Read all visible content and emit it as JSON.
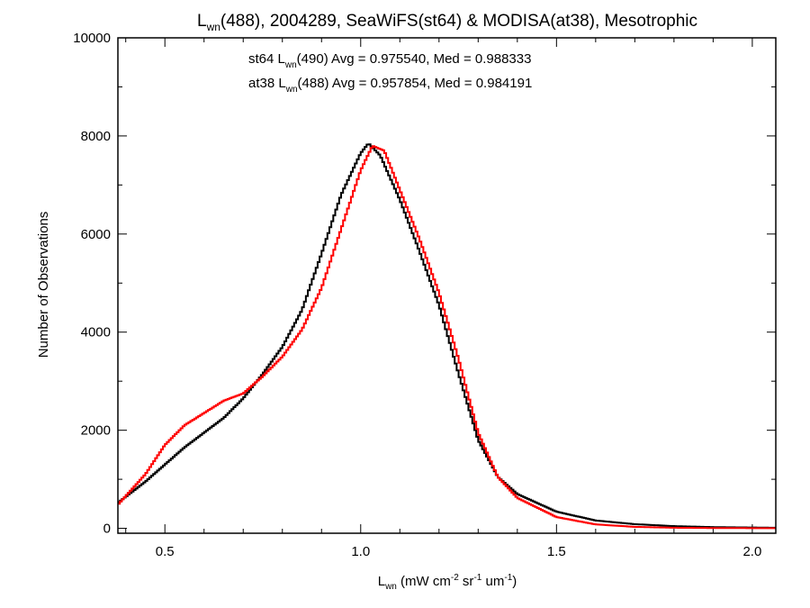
{
  "chart_data": {
    "type": "line",
    "title": {
      "main": "L",
      "sub": "wn",
      "rest": "(488), 2004289, SeaWiFS(st64) & MODISA(at38), Mesotrophic"
    },
    "xlabel": {
      "main": "L",
      "sub": "wn",
      "a": " (mW cm",
      "sup1": "-2",
      "b": " sr",
      "sup2": "-1",
      "c": " um",
      "sup3": "-1",
      "d": ")"
    },
    "ylabel": "Number of Observations",
    "xlim": [
      0.38,
      2.06
    ],
    "ylim": [
      -100,
      10000
    ],
    "xticks": [
      0.5,
      1.0,
      1.5,
      2.0
    ],
    "xtick_labels": [
      "0.5",
      "1.0",
      "1.5",
      "2.0"
    ],
    "yticks": [
      0,
      2000,
      4000,
      6000,
      8000,
      10000
    ],
    "ytick_labels": [
      "0",
      "2000",
      "4000",
      "6000",
      "8000",
      "10000"
    ],
    "annotations": [
      {
        "color": "#000000",
        "pre": "st64 L",
        "sub": "wn",
        "post": "(490) Avg = 0.975540, Med = 0.988333"
      },
      {
        "color": "#ff0000",
        "pre": "at38 L",
        "sub": "wn",
        "post": "(488) Avg = 0.957854, Med = 0.984191"
      }
    ],
    "series": [
      {
        "color": "#000000",
        "points": [
          [
            0.38,
            520
          ],
          [
            0.45,
            950
          ],
          [
            0.5,
            1300
          ],
          [
            0.55,
            1650
          ],
          [
            0.6,
            1950
          ],
          [
            0.65,
            2250
          ],
          [
            0.7,
            2650
          ],
          [
            0.75,
            3150
          ],
          [
            0.8,
            3700
          ],
          [
            0.85,
            4450
          ],
          [
            0.9,
            5600
          ],
          [
            0.95,
            6800
          ],
          [
            1.0,
            7650
          ],
          [
            1.02,
            7850
          ],
          [
            1.05,
            7600
          ],
          [
            1.1,
            6700
          ],
          [
            1.15,
            5650
          ],
          [
            1.2,
            4550
          ],
          [
            1.25,
            3150
          ],
          [
            1.3,
            1800
          ],
          [
            1.35,
            1050
          ],
          [
            1.4,
            700
          ],
          [
            1.5,
            340
          ],
          [
            1.6,
            160
          ],
          [
            1.7,
            85
          ],
          [
            1.8,
            45
          ],
          [
            1.9,
            25
          ],
          [
            2.06,
            12
          ]
        ]
      },
      {
        "color": "#ff0000",
        "points": [
          [
            0.38,
            480
          ],
          [
            0.45,
            1100
          ],
          [
            0.5,
            1700
          ],
          [
            0.55,
            2100
          ],
          [
            0.6,
            2350
          ],
          [
            0.65,
            2600
          ],
          [
            0.7,
            2750
          ],
          [
            0.75,
            3100
          ],
          [
            0.8,
            3500
          ],
          [
            0.85,
            4050
          ],
          [
            0.9,
            4900
          ],
          [
            0.95,
            6100
          ],
          [
            1.0,
            7300
          ],
          [
            1.03,
            7800
          ],
          [
            1.06,
            7700
          ],
          [
            1.1,
            6900
          ],
          [
            1.15,
            5900
          ],
          [
            1.2,
            4800
          ],
          [
            1.25,
            3450
          ],
          [
            1.3,
            1950
          ],
          [
            1.35,
            1050
          ],
          [
            1.4,
            620
          ],
          [
            1.5,
            230
          ],
          [
            1.6,
            80
          ],
          [
            1.7,
            30
          ],
          [
            1.8,
            12
          ],
          [
            1.9,
            6
          ],
          [
            2.06,
            3
          ]
        ]
      }
    ]
  }
}
